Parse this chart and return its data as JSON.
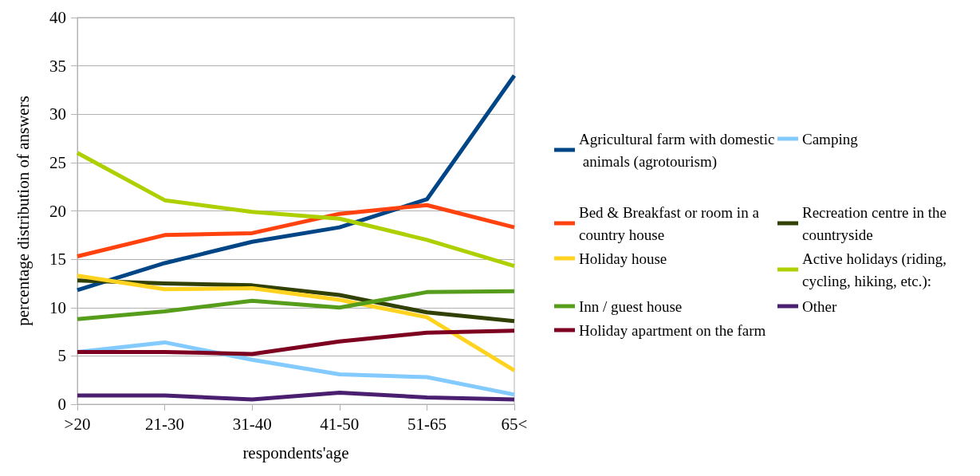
{
  "chart_data": {
    "type": "line",
    "xlabel": "respondents'age",
    "ylabel": "percentage distribution of answers",
    "categories": [
      ">20",
      "21-30",
      "31-40",
      "41-50",
      "51-65",
      "65<"
    ],
    "series": [
      {
        "name": "Agricultural farm with domestic animals (agrotourism)",
        "color": "#004586",
        "values": [
          11.8,
          14.6,
          16.8,
          18.3,
          21.2,
          34.0
        ]
      },
      {
        "name": "Camping",
        "color": "#83caff",
        "values": [
          5.4,
          6.4,
          4.6,
          3.1,
          2.8,
          1.0
        ]
      },
      {
        "name": "Bed & Breakfast or room in a country house",
        "color": "#ff420e",
        "values": [
          15.3,
          17.5,
          17.7,
          19.7,
          20.6,
          18.3
        ]
      },
      {
        "name": "Recreation centre in the countryside",
        "color": "#314004",
        "values": [
          12.8,
          12.5,
          12.3,
          11.3,
          9.5,
          8.6
        ]
      },
      {
        "name": "Holiday house",
        "color": "#ffd320",
        "values": [
          13.3,
          11.9,
          12.0,
          10.8,
          9.0,
          3.5
        ]
      },
      {
        "name": "Active holidays (riding, cycling, hiking, etc.):",
        "color": "#aecf00",
        "values": [
          26.0,
          21.1,
          19.9,
          19.2,
          17.0,
          14.3
        ]
      },
      {
        "name": "Inn / guest house",
        "color": "#579d1c",
        "values": [
          8.8,
          9.6,
          10.7,
          10.0,
          11.6,
          11.7
        ]
      },
      {
        "name": "Other",
        "color": "#4b1f6f",
        "values": [
          0.9,
          0.9,
          0.5,
          1.2,
          0.7,
          0.5
        ]
      },
      {
        "name": "Holiday apartment on the farm",
        "color": "#7e0021",
        "values": [
          5.4,
          5.4,
          5.2,
          6.5,
          7.4,
          7.6
        ]
      }
    ],
    "ylim": [
      0,
      40
    ],
    "yticks": [
      0,
      5,
      10,
      15,
      20,
      25,
      30,
      35,
      40
    ],
    "grid": "y",
    "legend": "right",
    "marker": "none",
    "line_style": "solid"
  }
}
